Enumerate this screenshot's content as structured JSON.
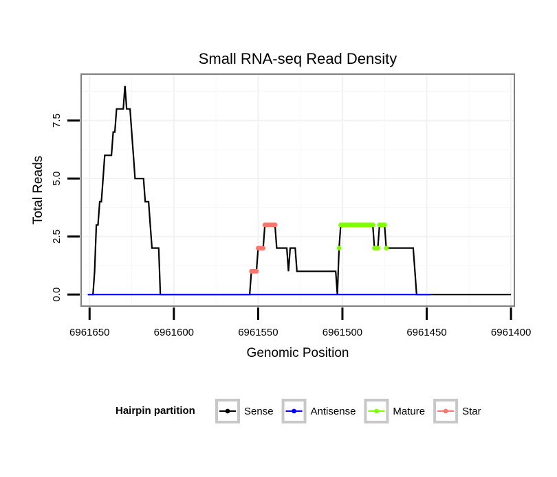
{
  "chart_data": {
    "type": "line",
    "title": "Small RNA-seq Read Density",
    "xlabel": "Genomic Position",
    "ylabel": "Total Reads",
    "x_reversed": true,
    "xlim": [
      6961655,
      6961398
    ],
    "ylim": [
      -0.5,
      9.5
    ],
    "x_ticks": [
      6961650,
      6961600,
      6961550,
      6961500,
      6961450,
      6961400
    ],
    "x_tick_labels": [
      "6961650",
      "6961600",
      "6961550",
      "6961500",
      "6961450",
      "6961400"
    ],
    "y_ticks": [
      0,
      2.5,
      5,
      7.5
    ],
    "y_tick_labels": [
      "0.0",
      "2.5",
      "5.0",
      "7.5"
    ],
    "grid": true,
    "legend": {
      "title": "Hairpin partition",
      "placement": "bottom",
      "entries": [
        "Sense",
        "Antisense",
        "Mature",
        "Star"
      ]
    },
    "series": [
      {
        "name": "Sense",
        "color": "#000000",
        "kind": "line",
        "points": [
          [
            6961651,
            0
          ],
          [
            6961648,
            0
          ],
          [
            6961647,
            1
          ],
          [
            6961646,
            3
          ],
          [
            6961645,
            3
          ],
          [
            6961644,
            4
          ],
          [
            6961643,
            4
          ],
          [
            6961642,
            5
          ],
          [
            6961641,
            6
          ],
          [
            6961640,
            6
          ],
          [
            6961638,
            6
          ],
          [
            6961637,
            6
          ],
          [
            6961636,
            7
          ],
          [
            6961635,
            7
          ],
          [
            6961634,
            8
          ],
          [
            6961633,
            8
          ],
          [
            6961631,
            8
          ],
          [
            6961630,
            8
          ],
          [
            6961629,
            9
          ],
          [
            6961628,
            8
          ],
          [
            6961626,
            8
          ],
          [
            6961625,
            7
          ],
          [
            6961624,
            6
          ],
          [
            6961623,
            5
          ],
          [
            6961622,
            5
          ],
          [
            6961620,
            5
          ],
          [
            6961618,
            5
          ],
          [
            6961617,
            4
          ],
          [
            6961615,
            4
          ],
          [
            6961614,
            3
          ],
          [
            6961613,
            2
          ],
          [
            6961612,
            2
          ],
          [
            6961610,
            2
          ],
          [
            6961609,
            2
          ],
          [
            6961608,
            0
          ],
          [
            6961600,
            0
          ],
          [
            6961555,
            0
          ],
          [
            6961554,
            1
          ],
          [
            6961551,
            1
          ],
          [
            6961550,
            2
          ],
          [
            6961549,
            2
          ],
          [
            6961547,
            2
          ],
          [
            6961546,
            3
          ],
          [
            6961545,
            3
          ],
          [
            6961540,
            3
          ],
          [
            6961539,
            2
          ],
          [
            6961535,
            2
          ],
          [
            6961533,
            2
          ],
          [
            6961532,
            1
          ],
          [
            6961531,
            2
          ],
          [
            6961530,
            2
          ],
          [
            6961528,
            2
          ],
          [
            6961527,
            1
          ],
          [
            6961520,
            1
          ],
          [
            6961510,
            1
          ],
          [
            6961504,
            1
          ],
          [
            6961503,
            0
          ],
          [
            6961502,
            2
          ],
          [
            6961501,
            3
          ],
          [
            6961499,
            3
          ],
          [
            6961494,
            3
          ],
          [
            6961482,
            3
          ],
          [
            6961481,
            2
          ],
          [
            6961479,
            2
          ],
          [
            6961478,
            3
          ],
          [
            6961475,
            3
          ],
          [
            6961474,
            2
          ],
          [
            6961465,
            2
          ],
          [
            6961458,
            2
          ],
          [
            6961457,
            1
          ],
          [
            6961456,
            0
          ],
          [
            6961400,
            0
          ]
        ]
      },
      {
        "name": "Antisense",
        "color": "#0000ff",
        "kind": "line",
        "points": [
          [
            6961651,
            0
          ],
          [
            6961448,
            0
          ]
        ]
      },
      {
        "name": "Mature",
        "color": "#7fff00",
        "kind": "points",
        "points": [
          [
            6961502,
            2
          ],
          [
            6961501,
            3
          ],
          [
            6961500,
            3
          ],
          [
            6961499,
            3
          ],
          [
            6961498,
            3
          ],
          [
            6961497,
            3
          ],
          [
            6961496,
            3
          ],
          [
            6961495,
            3
          ],
          [
            6961494,
            3
          ],
          [
            6961493,
            3
          ],
          [
            6961492,
            3
          ],
          [
            6961491,
            3
          ],
          [
            6961490,
            3
          ],
          [
            6961489,
            3
          ],
          [
            6961488,
            3
          ],
          [
            6961487,
            3
          ],
          [
            6961486,
            3
          ],
          [
            6961485,
            3
          ],
          [
            6961484,
            3
          ],
          [
            6961483,
            3
          ],
          [
            6961482,
            3
          ],
          [
            6961481,
            2
          ],
          [
            6961480,
            2
          ],
          [
            6961479,
            2
          ],
          [
            6961478,
            3
          ],
          [
            6961477,
            3
          ],
          [
            6961476,
            3
          ],
          [
            6961475,
            3
          ],
          [
            6961474,
            2
          ]
        ]
      },
      {
        "name": "Star",
        "color": "#f8766d",
        "kind": "points",
        "points": [
          [
            6961554,
            1
          ],
          [
            6961553,
            1
          ],
          [
            6961552,
            1
          ],
          [
            6961551,
            1
          ],
          [
            6961550,
            2
          ],
          [
            6961549,
            2
          ],
          [
            6961548,
            2
          ],
          [
            6961547,
            2
          ],
          [
            6961546,
            3
          ],
          [
            6961545,
            3
          ],
          [
            6961544,
            3
          ],
          [
            6961543,
            3
          ],
          [
            6961542,
            3
          ],
          [
            6961541,
            3
          ],
          [
            6961540,
            3
          ]
        ]
      }
    ]
  }
}
